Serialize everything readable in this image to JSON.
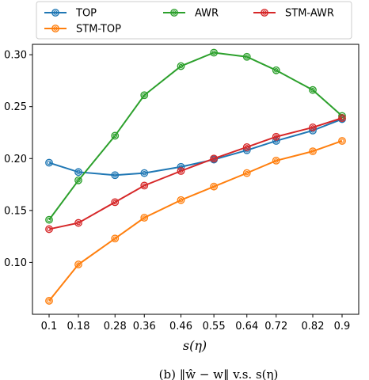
{
  "chart_data": {
    "type": "line",
    "title": "",
    "xlabel": "s(η)",
    "ylabel": "",
    "x": [
      0.1,
      0.18,
      0.28,
      0.36,
      0.46,
      0.55,
      0.64,
      0.72,
      0.82,
      0.9
    ],
    "x_tick_labels": [
      "0.1",
      "0.18",
      "0.28",
      "0.36",
      "0.46",
      "0.55",
      "0.64",
      "0.72",
      "0.82",
      "0.9"
    ],
    "ylim": [
      0.05,
      0.31
    ],
    "y_ticks": [
      0.1,
      0.15,
      0.2,
      0.25,
      0.3
    ],
    "y_tick_labels": [
      "0.10",
      "0.15",
      "0.20",
      "0.25",
      "0.30"
    ],
    "grid": false,
    "legend_position": "top",
    "series": [
      {
        "name": "TOP",
        "color": "#1f77b4",
        "values": [
          0.196,
          0.187,
          0.184,
          0.186,
          0.192,
          0.199,
          0.208,
          0.217,
          0.227,
          0.238
        ]
      },
      {
        "name": "AWR",
        "color": "#2ca02c",
        "values": [
          0.141,
          0.179,
          0.222,
          0.261,
          0.289,
          0.302,
          0.298,
          0.285,
          0.266,
          0.241
        ]
      },
      {
        "name": "STM-AWR",
        "color": "#d62728",
        "values": [
          0.132,
          0.138,
          0.158,
          0.174,
          0.188,
          0.2,
          0.211,
          0.221,
          0.23,
          0.239
        ]
      },
      {
        "name": "STM-TOP",
        "color": "#ff7f0e",
        "values": [
          0.063,
          0.098,
          0.123,
          0.143,
          0.16,
          0.173,
          0.186,
          0.198,
          0.207,
          0.217
        ]
      }
    ],
    "legend_order": [
      0,
      3,
      1,
      2
    ]
  },
  "caption": {
    "text": "(b) ‖ŵ − w‖ v.s. s(η)"
  }
}
